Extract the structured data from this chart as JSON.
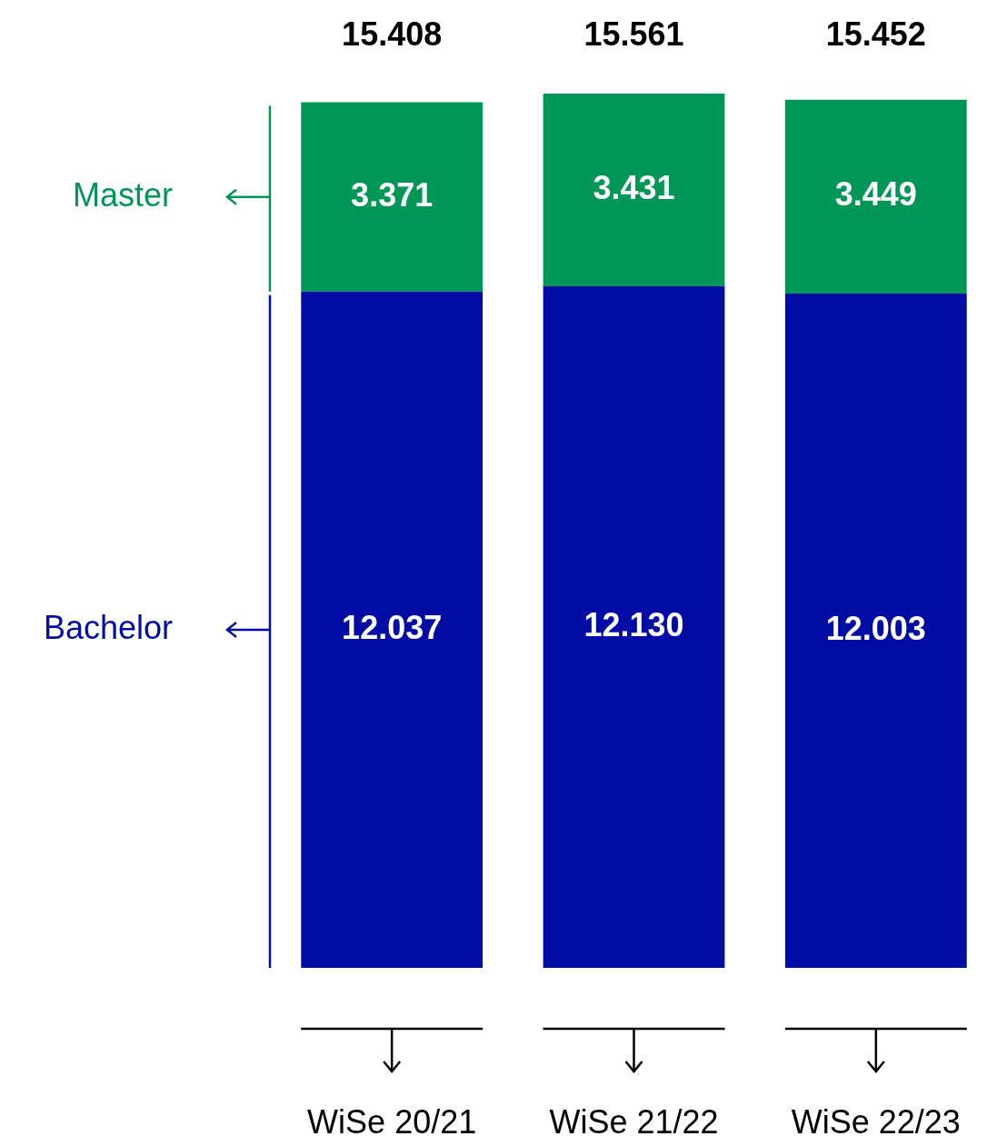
{
  "chart_data": {
    "type": "bar",
    "stacked": true,
    "categories": [
      "WiSe 20/21",
      "WiSe 21/22",
      "WiSe 22/23"
    ],
    "series": [
      {
        "name": "Bachelor",
        "color": "#000ca4",
        "values": [
          12037,
          12130,
          12003
        ],
        "value_labels": [
          "12.037",
          "12.130",
          "12.003"
        ]
      },
      {
        "name": "Master",
        "color": "#009655",
        "values": [
          3371,
          3431,
          3449
        ],
        "value_labels": [
          "3.371",
          "3.431",
          "3.449"
        ]
      }
    ],
    "totals": [
      "15.408",
      "15.561",
      "15.452"
    ],
    "grid": false,
    "legend": "left"
  }
}
